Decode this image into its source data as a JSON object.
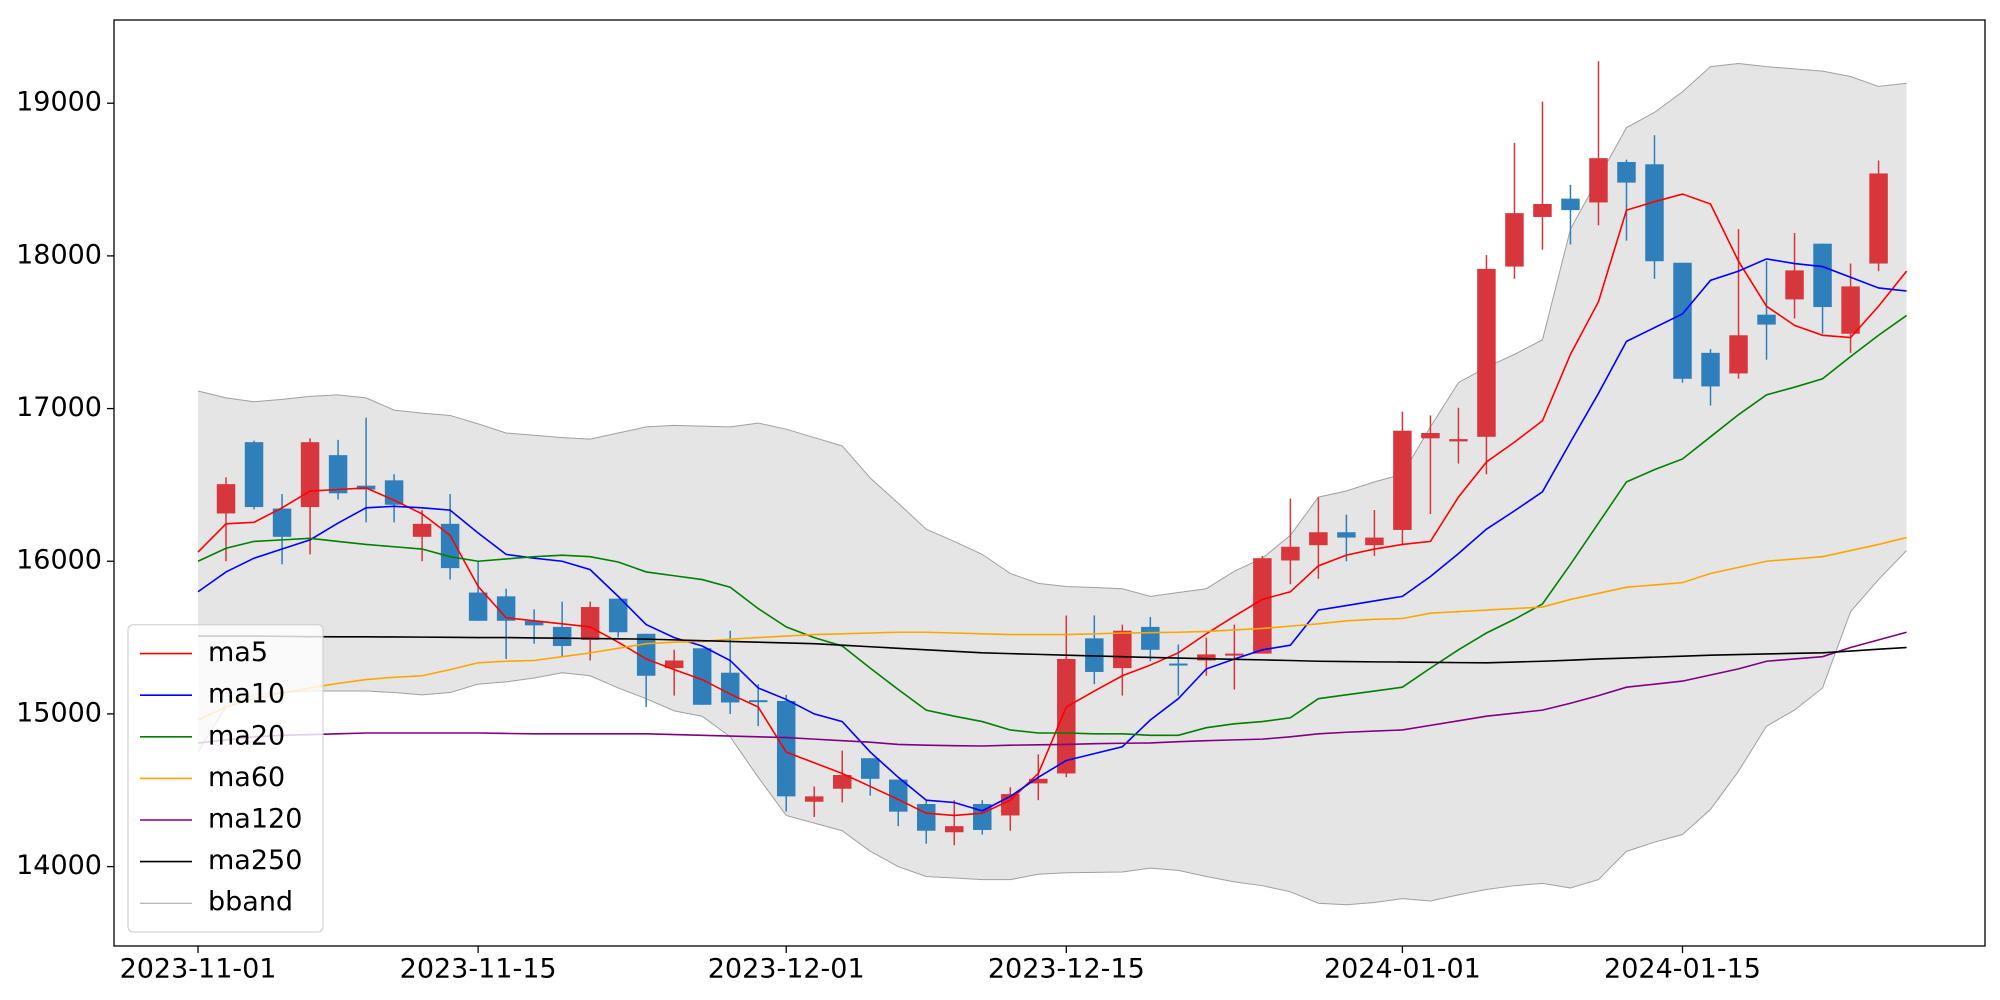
{
  "chart_data": {
    "type": "candlestick",
    "categories": [
      "2023-11-01",
      null,
      null,
      null,
      null,
      null,
      null,
      null,
      null,
      null,
      "2023-11-15",
      null,
      null,
      null,
      null,
      null,
      null,
      null,
      null,
      null,
      null,
      "2023-12-01",
      null,
      null,
      null,
      null,
      null,
      null,
      null,
      null,
      null,
      "2023-12-15",
      null,
      null,
      null,
      null,
      null,
      null,
      null,
      null,
      null,
      null,
      null,
      "2024-01-01",
      null,
      null,
      null,
      null,
      null,
      null,
      null,
      null,
      null,
      "2024-01-15",
      null,
      null,
      null,
      null,
      null,
      null,
      null,
      null
    ],
    "xlim": [
      -3,
      63.8
    ],
    "ylim": [
      13480,
      19545
    ],
    "yticks": [
      14000,
      15000,
      16000,
      17000,
      18000,
      19000
    ],
    "up_color": "#d6363c",
    "down_color": "#2f7fbb",
    "candles": {
      "open": [
        null,
        16313,
        16780,
        16345,
        16355,
        16695,
        16495,
        16530,
        16160,
        16245,
        15795,
        15770,
        15610,
        15570,
        15485,
        15755,
        15525,
        15300,
        15430,
        15270,
        15090,
        15085,
        14425,
        14510,
        14710,
        14570,
        14410,
        14225,
        14410,
        14335,
        14545,
        14610,
        15495,
        15300,
        15570,
        15330,
        15350,
        15385,
        15395,
        16005,
        16105,
        16190,
        16105,
        16205,
        16805,
        16785,
        16815,
        17930,
        18255,
        18375,
        18350,
        18615,
        18600,
        17955,
        17365,
        17230,
        17615,
        17715,
        18080,
        17490,
        17950,
        null
      ],
      "high": [
        null,
        16550,
        16790,
        16440,
        16805,
        16795,
        16940,
        16570,
        16335,
        16440,
        16000,
        15820,
        15685,
        15735,
        15735,
        15755,
        15525,
        15420,
        15430,
        15545,
        15195,
        15125,
        14525,
        14760,
        14710,
        14570,
        14440,
        14435,
        14435,
        14520,
        14735,
        15645,
        15645,
        15585,
        15635,
        15455,
        15500,
        15585,
        16035,
        16410,
        16420,
        16305,
        16335,
        16980,
        16955,
        17005,
        18005,
        18740,
        19010,
        18465,
        19275,
        18630,
        18790,
        17955,
        17390,
        18175,
        17965,
        18150,
        18080,
        17950,
        18625,
        null
      ],
      "low": [
        null,
        16000,
        16340,
        15980,
        16045,
        16405,
        16255,
        16255,
        16000,
        15880,
        15610,
        15360,
        15460,
        15370,
        15350,
        15500,
        15045,
        15120,
        15060,
        15000,
        14920,
        14360,
        14325,
        14420,
        14465,
        14265,
        14150,
        14140,
        14210,
        14235,
        14435,
        14585,
        15195,
        15120,
        15345,
        15120,
        15250,
        15160,
        15395,
        15850,
        15885,
        16000,
        16035,
        16105,
        16310,
        16640,
        16570,
        17850,
        18040,
        18075,
        18200,
        18100,
        17850,
        17170,
        17020,
        17195,
        17320,
        17590,
        17490,
        17365,
        17900,
        null
      ],
      "close": [
        null,
        16505,
        16355,
        16160,
        16780,
        16445,
        16470,
        16370,
        16245,
        15955,
        15610,
        15610,
        15580,
        15445,
        15700,
        15535,
        15250,
        15350,
        15060,
        15075,
        15080,
        14460,
        14460,
        14600,
        14575,
        14360,
        14235,
        14265,
        14240,
        14475,
        14575,
        15360,
        15275,
        15545,
        15420,
        15320,
        15390,
        15395,
        16020,
        16095,
        16190,
        16155,
        16155,
        16855,
        16840,
        16800,
        17915,
        18280,
        18340,
        18300,
        18640,
        18480,
        17965,
        17195,
        17145,
        17480,
        17550,
        17905,
        17665,
        17800,
        18540,
        null
      ]
    },
    "series": [
      {
        "name": "ma5",
        "color": "#ff0000",
        "values": [
          16060,
          16245,
          16255,
          16350,
          16460,
          16470,
          16480,
          16400,
          16310,
          16170,
          15835,
          15630,
          15610,
          15590,
          15570,
          15470,
          15360,
          15290,
          15225,
          15130,
          15045,
          14750,
          14680,
          14610,
          14525,
          14440,
          14350,
          14335,
          14350,
          14435,
          14610,
          15045,
          15150,
          15250,
          15320,
          15400,
          15525,
          15640,
          15750,
          15800,
          15970,
          16040,
          16080,
          16110,
          16130,
          16420,
          16650,
          16780,
          16920,
          17355,
          17700,
          18300,
          18355,
          18405,
          18340,
          17965,
          17670,
          17545,
          17480,
          17465,
          17670,
          17900
        ]
      },
      {
        "name": "ma10",
        "color": "#0000ff",
        "values": [
          15800,
          15930,
          16020,
          16080,
          16140,
          16250,
          16350,
          16360,
          16350,
          16335,
          16185,
          16045,
          16020,
          16000,
          15945,
          15770,
          15585,
          15500,
          15445,
          15350,
          15170,
          15095,
          15000,
          14950,
          14750,
          14585,
          14435,
          14420,
          14365,
          14460,
          14585,
          14695,
          14740,
          14785,
          14960,
          15100,
          15295,
          15360,
          15420,
          15450,
          15680,
          15710,
          15740,
          15770,
          15900,
          16050,
          16210,
          16330,
          16455,
          16780,
          17100,
          17440,
          17530,
          17620,
          17840,
          17900,
          17980,
          17950,
          17930,
          17860,
          17790,
          17770
        ]
      },
      {
        "name": "ma20",
        "color": "#008000",
        "values": [
          16000,
          16085,
          16130,
          16140,
          16150,
          16130,
          16110,
          16095,
          16080,
          16030,
          16000,
          16015,
          16030,
          16040,
          16030,
          15995,
          15930,
          15905,
          15880,
          15830,
          15690,
          15570,
          15500,
          15445,
          15300,
          15160,
          15025,
          14985,
          14950,
          14895,
          14875,
          14875,
          14870,
          14870,
          14860,
          14860,
          14910,
          14935,
          14950,
          14975,
          15100,
          15125,
          15150,
          15175,
          15300,
          15420,
          15530,
          15620,
          15720,
          15980,
          16250,
          16520,
          16600,
          16670,
          16815,
          16960,
          17090,
          17140,
          17195,
          17340,
          17480,
          17610
        ]
      },
      {
        "name": "ma60",
        "color": "#ffa500",
        "values": [
          14960,
          15045,
          15100,
          15135,
          15170,
          15200,
          15225,
          15240,
          15250,
          15290,
          15335,
          15345,
          15350,
          15375,
          15400,
          15430,
          15460,
          15470,
          15475,
          15490,
          15500,
          15510,
          15520,
          15525,
          15530,
          15535,
          15535,
          15530,
          15525,
          15520,
          15520,
          15520,
          15525,
          15530,
          15532,
          15535,
          15540,
          15550,
          15560,
          15575,
          15590,
          15610,
          15620,
          15625,
          15660,
          15670,
          15680,
          15690,
          15700,
          15750,
          15790,
          15830,
          15845,
          15860,
          15920,
          15960,
          16000,
          16015,
          16030,
          16070,
          16110,
          16155
        ]
      },
      {
        "name": "ma120",
        "color": "#800080",
        "values": [
          14810,
          14830,
          14850,
          14860,
          14865,
          14870,
          14875,
          14875,
          14875,
          14875,
          14875,
          14872,
          14870,
          14870,
          14870,
          14870,
          14870,
          14865,
          14860,
          14855,
          14850,
          14845,
          14835,
          14825,
          14815,
          14800,
          14795,
          14792,
          14790,
          14795,
          14798,
          14800,
          14805,
          14808,
          14810,
          14818,
          14825,
          14830,
          14835,
          14850,
          14870,
          14880,
          14888,
          14895,
          14925,
          14955,
          14985,
          15005,
          15025,
          15070,
          15120,
          15175,
          15195,
          15215,
          15255,
          15295,
          15345,
          15360,
          15375,
          15435,
          15485,
          15535
        ]
      },
      {
        "name": "ma250",
        "color": "#000000",
        "values": [
          15510,
          15510,
          15510,
          15508,
          15506,
          15505,
          15505,
          15504,
          15503,
          15502,
          15500,
          15500,
          15498,
          15496,
          15494,
          15492,
          15490,
          15485,
          15480,
          15475,
          15470,
          15465,
          15460,
          15450,
          15440,
          15430,
          15420,
          15410,
          15400,
          15395,
          15390,
          15385,
          15380,
          15375,
          15370,
          15366,
          15362,
          15358,
          15354,
          15350,
          15345,
          15343,
          15341,
          15340,
          15338,
          15336,
          15335,
          15340,
          15345,
          15352,
          15360,
          15366,
          15372,
          15378,
          15385,
          15389,
          15393,
          15397,
          15400,
          15412,
          15424,
          15435
        ]
      }
    ],
    "band": {
      "name": "bband",
      "color": "#a0a0a0",
      "fill": "#e5e5e5",
      "upper": [
        17115,
        17070,
        17045,
        17060,
        17080,
        17090,
        17070,
        16990,
        16970,
        16955,
        16900,
        16840,
        16825,
        16810,
        16800,
        16840,
        16880,
        16890,
        16885,
        16880,
        16905,
        16865,
        16810,
        16755,
        16545,
        16380,
        16210,
        16130,
        16045,
        15920,
        15855,
        15835,
        15828,
        15820,
        15770,
        15795,
        15820,
        15935,
        16020,
        16170,
        16420,
        16460,
        16520,
        16570,
        16880,
        17170,
        17270,
        17355,
        17450,
        18175,
        18510,
        18840,
        18940,
        19075,
        19240,
        19260,
        19240,
        19225,
        19210,
        19175,
        19110,
        19130
      ],
      "lower": [
        14750,
        15045,
        15125,
        15140,
        15150,
        15150,
        15150,
        15140,
        15125,
        15140,
        15195,
        15210,
        15235,
        15270,
        15250,
        15170,
        15100,
        15020,
        14985,
        14850,
        14585,
        14335,
        14285,
        14235,
        14100,
        14000,
        13935,
        13925,
        13915,
        13915,
        13950,
        13960,
        13962,
        13965,
        13990,
        13975,
        13935,
        13900,
        13875,
        13835,
        13760,
        13750,
        13765,
        13790,
        13775,
        13815,
        13850,
        13875,
        13890,
        13860,
        13915,
        14100,
        14160,
        14210,
        14375,
        14625,
        14920,
        15025,
        15170,
        15670,
        15880,
        16070
      ]
    },
    "legend": "lower left"
  }
}
